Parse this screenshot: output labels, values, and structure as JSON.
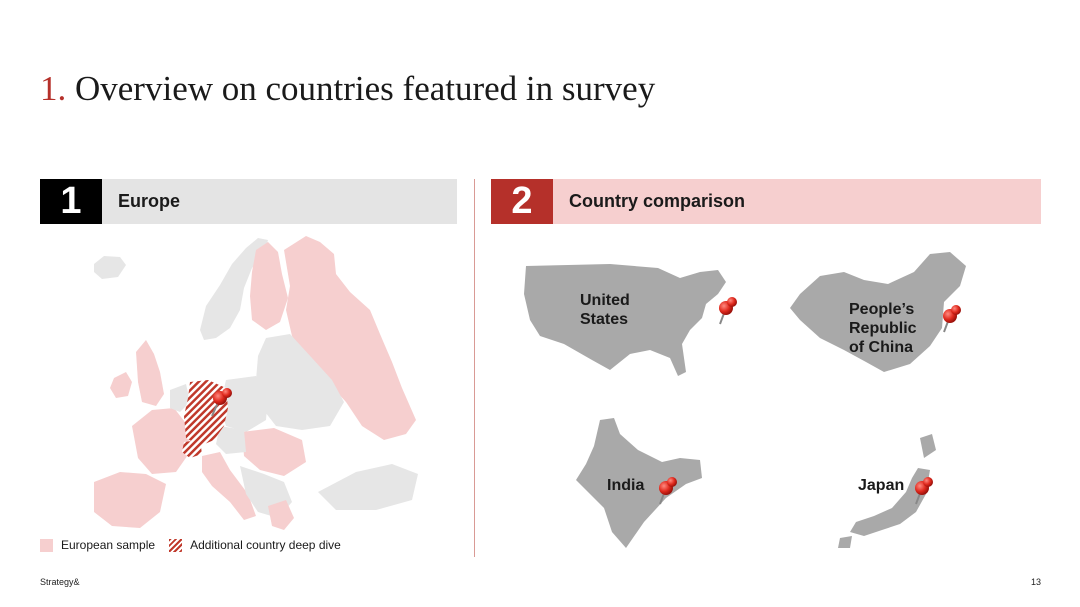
{
  "title": {
    "number": "1.",
    "text": "Overview on countries featured in survey"
  },
  "panels": [
    {
      "badge": "1",
      "label": "Europe"
    },
    {
      "badge": "2",
      "label": "Country comparison"
    }
  ],
  "countries": {
    "usa": {
      "line1": "United",
      "line2": "States"
    },
    "china": {
      "line1": "People’s",
      "line2": "Republic",
      "line3": "of China"
    },
    "india": "India",
    "japan": "Japan"
  },
  "legend": {
    "sample": "European sample",
    "deep_dive": "Additional country deep dive"
  },
  "footer": {
    "brand": "Strategy&",
    "page": "13"
  },
  "colors": {
    "accent": "#b5302a",
    "sample_fill": "#f6cfcf",
    "map_grey": "#e6e6e6",
    "country_grey": "#a9a9a9"
  },
  "icons": {
    "marker": "pushpin-icon"
  }
}
